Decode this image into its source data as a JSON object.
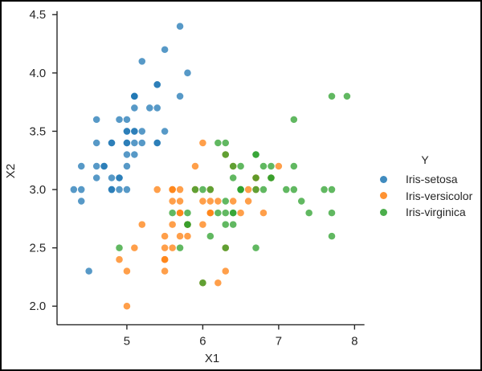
{
  "figure": {
    "background": "#ffffff",
    "border_color": "#000000"
  },
  "chart_data": {
    "type": "scatter",
    "title": "",
    "xlabel": "X1",
    "ylabel": "X2",
    "xlim": [
      4.08,
      8.13
    ],
    "ylim": [
      1.84,
      4.53
    ],
    "grid": false,
    "axis_color": "#262626",
    "text_color": "#262626",
    "marker_opacity": 0.75,
    "x_ticks": [
      {
        "value": 5,
        "label": "5"
      },
      {
        "value": 6,
        "label": "6"
      },
      {
        "value": 7,
        "label": "7"
      },
      {
        "value": 8,
        "label": "8"
      }
    ],
    "y_ticks": [
      {
        "value": 2.0,
        "label": "2.0"
      },
      {
        "value": 2.5,
        "label": "2.5"
      },
      {
        "value": 3.0,
        "label": "3.0"
      },
      {
        "value": 3.5,
        "label": "3.5"
      },
      {
        "value": 4.0,
        "label": "4.0"
      },
      {
        "value": 4.5,
        "label": "4.5"
      }
    ],
    "legend": {
      "title": "Y",
      "position": "right-outside",
      "entries": [
        {
          "label": "Iris-setosa",
          "color": "#1f77b4"
        },
        {
          "label": "Iris-versicolor",
          "color": "#ff7f0e"
        },
        {
          "label": "Iris-virginica",
          "color": "#2ca02c"
        }
      ]
    },
    "series": [
      {
        "name": "Iris-setosa",
        "color": "#1f77b4",
        "points": [
          [
            5.1,
            3.5
          ],
          [
            4.9,
            3.0
          ],
          [
            4.7,
            3.2
          ],
          [
            4.6,
            3.1
          ],
          [
            5.0,
            3.6
          ],
          [
            5.4,
            3.9
          ],
          [
            4.6,
            3.4
          ],
          [
            5.0,
            3.4
          ],
          [
            4.4,
            2.9
          ],
          [
            4.9,
            3.1
          ],
          [
            5.4,
            3.7
          ],
          [
            4.8,
            3.4
          ],
          [
            4.8,
            3.0
          ],
          [
            4.3,
            3.0
          ],
          [
            5.8,
            4.0
          ],
          [
            5.7,
            4.4
          ],
          [
            5.4,
            3.9
          ],
          [
            5.1,
            3.5
          ],
          [
            5.7,
            3.8
          ],
          [
            5.1,
            3.8
          ],
          [
            5.4,
            3.4
          ],
          [
            5.1,
            3.7
          ],
          [
            4.6,
            3.6
          ],
          [
            5.1,
            3.3
          ],
          [
            4.8,
            3.4
          ],
          [
            5.0,
            3.0
          ],
          [
            5.0,
            3.4
          ],
          [
            5.2,
            3.5
          ],
          [
            5.2,
            3.4
          ],
          [
            4.7,
            3.2
          ],
          [
            4.8,
            3.1
          ],
          [
            5.4,
            3.4
          ],
          [
            5.2,
            4.1
          ],
          [
            5.5,
            4.2
          ],
          [
            4.9,
            3.1
          ],
          [
            5.0,
            3.2
          ],
          [
            5.5,
            3.5
          ],
          [
            4.9,
            3.6
          ],
          [
            4.4,
            3.0
          ],
          [
            5.1,
            3.4
          ],
          [
            5.0,
            3.5
          ],
          [
            4.5,
            2.3
          ],
          [
            4.4,
            3.2
          ],
          [
            5.0,
            3.5
          ],
          [
            5.1,
            3.8
          ],
          [
            4.8,
            3.0
          ],
          [
            5.1,
            3.8
          ],
          [
            4.6,
            3.2
          ],
          [
            5.3,
            3.7
          ],
          [
            5.0,
            3.3
          ]
        ]
      },
      {
        "name": "Iris-versicolor",
        "color": "#ff7f0e",
        "points": [
          [
            7.0,
            3.2
          ],
          [
            6.4,
            3.2
          ],
          [
            6.9,
            3.1
          ],
          [
            5.5,
            2.3
          ],
          [
            6.5,
            2.8
          ],
          [
            5.7,
            2.8
          ],
          [
            6.3,
            3.3
          ],
          [
            4.9,
            2.4
          ],
          [
            6.6,
            2.9
          ],
          [
            5.2,
            2.7
          ],
          [
            5.0,
            2.0
          ],
          [
            5.9,
            3.0
          ],
          [
            6.0,
            2.2
          ],
          [
            6.1,
            2.9
          ],
          [
            5.6,
            2.9
          ],
          [
            6.7,
            3.1
          ],
          [
            5.6,
            3.0
          ],
          [
            5.8,
            2.7
          ],
          [
            6.2,
            2.2
          ],
          [
            5.6,
            2.5
          ],
          [
            5.9,
            3.2
          ],
          [
            6.1,
            2.8
          ],
          [
            6.3,
            2.5
          ],
          [
            6.1,
            2.8
          ],
          [
            6.4,
            2.9
          ],
          [
            6.6,
            3.0
          ],
          [
            6.8,
            2.8
          ],
          [
            6.7,
            3.0
          ],
          [
            6.0,
            2.9
          ],
          [
            5.7,
            2.6
          ],
          [
            5.5,
            2.4
          ],
          [
            5.5,
            2.4
          ],
          [
            5.8,
            2.7
          ],
          [
            6.0,
            2.7
          ],
          [
            5.4,
            3.0
          ],
          [
            6.0,
            3.4
          ],
          [
            6.7,
            3.1
          ],
          [
            6.3,
            2.3
          ],
          [
            5.6,
            3.0
          ],
          [
            5.5,
            2.5
          ],
          [
            5.5,
            2.6
          ],
          [
            6.1,
            3.0
          ],
          [
            5.8,
            2.6
          ],
          [
            5.0,
            2.3
          ],
          [
            5.6,
            2.7
          ],
          [
            5.7,
            3.0
          ],
          [
            5.7,
            2.9
          ],
          [
            6.2,
            2.9
          ],
          [
            5.1,
            2.5
          ],
          [
            5.7,
            2.8
          ]
        ]
      },
      {
        "name": "Iris-virginica",
        "color": "#2ca02c",
        "points": [
          [
            6.3,
            3.3
          ],
          [
            5.8,
            2.7
          ],
          [
            7.1,
            3.0
          ],
          [
            6.3,
            2.9
          ],
          [
            6.5,
            3.0
          ],
          [
            7.6,
            3.0
          ],
          [
            4.9,
            2.5
          ],
          [
            7.3,
            2.9
          ],
          [
            6.7,
            2.5
          ],
          [
            7.2,
            3.6
          ],
          [
            6.5,
            3.2
          ],
          [
            6.4,
            2.7
          ],
          [
            6.8,
            3.0
          ],
          [
            5.7,
            2.5
          ],
          [
            5.8,
            2.8
          ],
          [
            6.4,
            3.2
          ],
          [
            6.5,
            3.0
          ],
          [
            7.7,
            3.8
          ],
          [
            7.7,
            2.6
          ],
          [
            6.0,
            2.2
          ],
          [
            6.9,
            3.2
          ],
          [
            5.6,
            2.8
          ],
          [
            7.7,
            2.8
          ],
          [
            6.3,
            2.7
          ],
          [
            6.7,
            3.3
          ],
          [
            7.2,
            3.2
          ],
          [
            6.2,
            2.8
          ],
          [
            6.1,
            3.0
          ],
          [
            6.4,
            2.8
          ],
          [
            7.2,
            3.0
          ],
          [
            7.4,
            2.8
          ],
          [
            7.9,
            3.8
          ],
          [
            6.4,
            2.8
          ],
          [
            6.3,
            2.8
          ],
          [
            6.1,
            2.6
          ],
          [
            7.7,
            3.0
          ],
          [
            6.3,
            3.4
          ],
          [
            6.4,
            3.1
          ],
          [
            6.0,
            3.0
          ],
          [
            6.9,
            3.1
          ],
          [
            6.7,
            3.1
          ],
          [
            6.9,
            3.1
          ],
          [
            5.8,
            2.7
          ],
          [
            6.8,
            3.2
          ],
          [
            6.7,
            3.3
          ],
          [
            6.7,
            3.0
          ],
          [
            6.3,
            2.5
          ],
          [
            6.5,
            3.0
          ],
          [
            6.2,
            3.4
          ],
          [
            5.9,
            3.0
          ]
        ]
      }
    ]
  }
}
